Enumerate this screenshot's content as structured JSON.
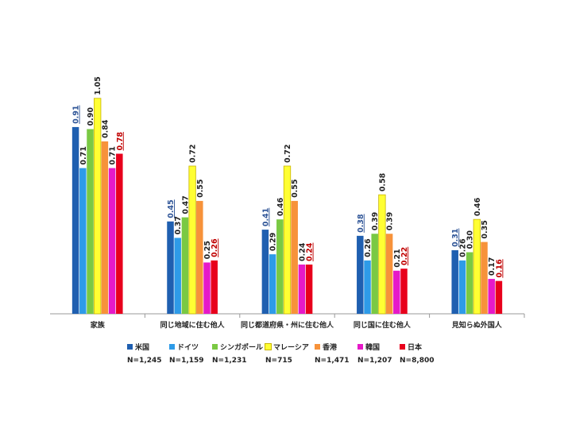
{
  "chart_data": {
    "type": "bar",
    "categories": [
      "家族",
      "同じ地域に住む他人",
      "同じ都道府県・州に住む他人",
      "同じ国に住む他人",
      "見知らぬ外国人"
    ],
    "ylim": [
      0,
      1.2
    ],
    "grid": false,
    "legend_position": "bottom",
    "series": [
      {
        "name": "米国",
        "n_label": "N=1,245",
        "color": "#1f5fb0",
        "label_color": "#2f5597",
        "underline": true,
        "values": [
          0.91,
          0.45,
          0.41,
          0.38,
          0.31
        ]
      },
      {
        "name": "ドイツ",
        "n_label": "N=1,159",
        "color": "#2e9be8",
        "label_color": "#222222",
        "underline": false,
        "values": [
          0.71,
          0.37,
          0.29,
          0.26,
          0.26
        ]
      },
      {
        "name": "シンガポール",
        "n_label": "N=1,231",
        "color": "#7ac943",
        "label_color": "#222222",
        "underline": false,
        "values": [
          0.9,
          0.47,
          0.46,
          0.39,
          0.3
        ]
      },
      {
        "name": "マレーシア",
        "n_label": "N=715",
        "color": "#ffff33",
        "label_color": "#222222",
        "underline": false,
        "values": [
          1.05,
          0.72,
          0.72,
          0.58,
          0.46
        ]
      },
      {
        "name": "香港",
        "n_label": "N=1,471",
        "color": "#f7923a",
        "label_color": "#222222",
        "underline": false,
        "values": [
          0.84,
          0.55,
          0.55,
          0.39,
          0.35
        ]
      },
      {
        "name": "韓国",
        "n_label": "N=1,207",
        "color": "#e619c8",
        "label_color": "#222222",
        "underline": false,
        "values": [
          0.71,
          0.25,
          0.24,
          0.21,
          0.17
        ]
      },
      {
        "name": "日本",
        "n_label": "N=8,800",
        "color": "#e8001c",
        "label_color": "#c00000",
        "underline": true,
        "values": [
          0.78,
          0.26,
          0.24,
          0.22,
          0.16
        ]
      }
    ]
  }
}
